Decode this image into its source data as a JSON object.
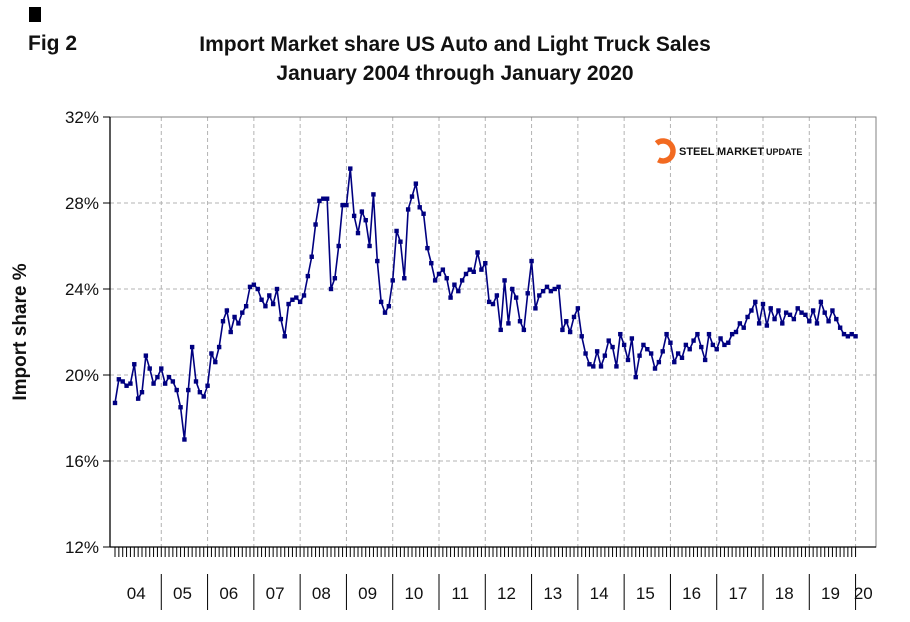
{
  "figure": {
    "fig_label": "Fig 2",
    "title_line1": "Import Market share US Auto and Light Truck Sales",
    "title_line2": "January 2004 through January 2020"
  },
  "logo": {
    "steel": "STEEL",
    "market": "MARKET",
    "update": "UPDATE",
    "swoosh_color": "#F26A21",
    "steel_color": "#17365D",
    "market_color": "#2E75B6",
    "update_color": "#8EA9DB"
  },
  "chart_data": {
    "type": "line",
    "title": "Import Market share US Auto and Light Truck Sales January 2004 through January 2020",
    "xlabel": "",
    "ylabel": "Import share %",
    "ylim": [
      12,
      32
    ],
    "yticks": [
      12,
      16,
      20,
      24,
      28,
      32
    ],
    "ytick_labels": [
      "12%",
      "16%",
      "20%",
      "24%",
      "28%",
      "32%"
    ],
    "x_year_labels": [
      "04",
      "05",
      "06",
      "07",
      "08",
      "09",
      "10",
      "11",
      "12",
      "13",
      "14",
      "15",
      "16",
      "17",
      "18",
      "19",
      "20"
    ],
    "x_start": "2004-01",
    "x_end": "2020-01",
    "frequency": "monthly",
    "grid": true,
    "legend_position": "none",
    "marker": "square",
    "series": [
      {
        "name": "Import share %",
        "color": "#000080",
        "values": [
          18.7,
          19.8,
          19.7,
          19.5,
          19.6,
          20.5,
          18.9,
          19.2,
          20.9,
          20.3,
          19.6,
          19.9,
          20.3,
          19.6,
          19.9,
          19.7,
          19.3,
          18.5,
          17.0,
          19.3,
          21.3,
          19.7,
          19.2,
          19.0,
          19.5,
          21.0,
          20.6,
          21.3,
          22.5,
          23.0,
          22.0,
          22.7,
          22.4,
          22.9,
          23.2,
          24.1,
          24.2,
          24.0,
          23.5,
          23.2,
          23.7,
          23.3,
          24.0,
          22.6,
          21.8,
          23.3,
          23.5,
          23.6,
          23.4,
          23.7,
          24.6,
          25.5,
          27.0,
          28.1,
          28.2,
          28.2,
          24.0,
          24.5,
          26.0,
          27.9,
          27.9,
          29.6,
          27.4,
          26.6,
          27.6,
          27.2,
          26.0,
          28.4,
          25.3,
          23.4,
          22.9,
          23.2,
          24.4,
          26.7,
          26.2,
          24.5,
          27.7,
          28.3,
          28.9,
          27.8,
          27.5,
          25.9,
          25.2,
          24.4,
          24.7,
          24.9,
          24.5,
          23.6,
          24.2,
          23.9,
          24.4,
          24.7,
          24.9,
          24.8,
          25.7,
          24.9,
          25.2,
          23.4,
          23.3,
          23.7,
          22.1,
          24.4,
          22.4,
          24.0,
          23.6,
          22.5,
          22.1,
          23.8,
          25.3,
          23.1,
          23.7,
          23.9,
          24.1,
          23.9,
          24.0,
          24.1,
          22.1,
          22.5,
          22.0,
          22.7,
          23.1,
          21.8,
          21.0,
          20.5,
          20.4,
          21.1,
          20.4,
          20.9,
          21.6,
          21.3,
          20.4,
          21.9,
          21.4,
          20.7,
          21.7,
          19.9,
          20.9,
          21.4,
          21.2,
          21.0,
          20.3,
          20.6,
          21.1,
          21.9,
          21.5,
          20.6,
          21.0,
          20.8,
          21.4,
          21.2,
          21.6,
          21.9,
          21.3,
          20.7,
          21.9,
          21.4,
          21.2,
          21.7,
          21.4,
          21.5,
          21.9,
          22.0,
          22.4,
          22.2,
          22.7,
          23.0,
          23.4,
          22.4,
          23.3,
          22.3,
          23.1,
          22.6,
          23.0,
          22.4,
          22.9,
          22.8,
          22.6,
          23.1,
          22.9,
          22.8,
          22.5,
          23.0,
          22.4,
          23.4,
          22.9,
          22.5,
          23.0,
          22.6,
          22.2,
          21.9,
          21.8,
          21.9,
          21.8
        ]
      }
    ]
  }
}
